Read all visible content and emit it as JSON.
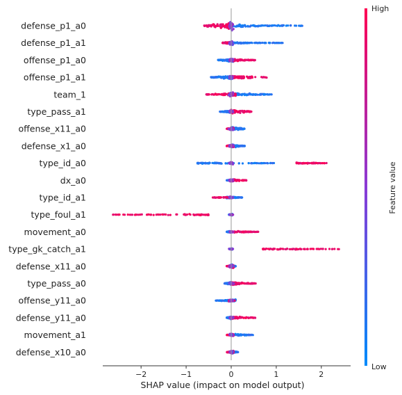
{
  "chart_data": {
    "type": "scatter",
    "subtype": "shap-beeswarm-summary",
    "xlabel": "SHAP value (impact on model output)",
    "xlim": [
      -2.85,
      2.65
    ],
    "xticks": [
      -2,
      -1,
      0,
      1,
      2
    ],
    "xtick_labels": [
      "−2",
      "−1",
      "0",
      "1",
      "2"
    ],
    "grid": false,
    "colorbar": {
      "label": "Feature value",
      "high": "High",
      "low": "Low",
      "high_color": "#ff0052",
      "low_color": "#008bfb"
    },
    "features": [
      {
        "name": "defense_p1_a0",
        "min": -0.6,
        "max": 1.6,
        "low_range": [
          0.0,
          1.6
        ],
        "high_range": [
          -0.6,
          -0.05
        ],
        "low_spread": 0.34,
        "high_spread": 0.85,
        "mid_spread": 0.95
      },
      {
        "name": "defense_p1_a1",
        "min": -0.2,
        "max": 1.15,
        "low_range": [
          0.0,
          1.15
        ],
        "high_range": [
          -0.2,
          0.0
        ],
        "low_spread": 0.15,
        "high_spread": 0.3,
        "mid_spread": 0.5
      },
      {
        "name": "offense_p1_a0",
        "min": -0.3,
        "max": 0.55,
        "low_range": [
          -0.3,
          0.05
        ],
        "high_range": [
          0.0,
          0.55
        ],
        "low_spread": 0.4,
        "high_spread": 0.3,
        "mid_spread": 0.3
      },
      {
        "name": "offense_p1_a1",
        "min": -0.45,
        "max": 0.8,
        "low_range": [
          -0.45,
          0.0
        ],
        "high_range": [
          0.0,
          0.8
        ],
        "low_spread": 0.4,
        "high_spread": 0.35,
        "mid_spread": 0.3
      },
      {
        "name": "team_1",
        "min": -0.55,
        "max": 0.9,
        "low_range": [
          0.0,
          0.9
        ],
        "high_range": [
          -0.55,
          0.1
        ],
        "low_spread": 0.35,
        "high_spread": 0.4,
        "mid_spread": 0.4
      },
      {
        "name": "type_pass_a1",
        "min": -0.25,
        "max": 0.45,
        "low_range": [
          -0.25,
          0.0
        ],
        "high_range": [
          0.0,
          0.45
        ],
        "low_spread": 0.25,
        "high_spread": 0.45,
        "mid_spread": 0.25
      },
      {
        "name": "offense_x11_a0",
        "min": -0.1,
        "max": 0.3,
        "low_range": [
          0.0,
          0.3
        ],
        "high_range": [
          -0.1,
          0.05
        ],
        "low_spread": 0.45,
        "high_spread": 0.3,
        "mid_spread": 0.3
      },
      {
        "name": "defense_x1_a0",
        "min": -0.1,
        "max": 0.3,
        "low_range": [
          0.0,
          0.3
        ],
        "high_range": [
          -0.1,
          0.05
        ],
        "low_spread": 0.35,
        "high_spread": 0.3,
        "mid_spread": 0.3
      },
      {
        "name": "type_id_a0",
        "min": -0.75,
        "max": 2.15,
        "low_range": [
          -0.75,
          0.95
        ],
        "high_range": [
          1.45,
          2.15
        ],
        "low_spread": 0.2,
        "high_spread": 0.15,
        "mid_spread": 0.25
      },
      {
        "name": "dx_a0",
        "min": -0.1,
        "max": 0.35,
        "low_range": [
          -0.1,
          0.05
        ],
        "high_range": [
          0.0,
          0.35
        ],
        "low_spread": 0.3,
        "high_spread": 0.25,
        "mid_spread": 0.2
      },
      {
        "name": "type_id_a1",
        "min": -0.45,
        "max": 0.25,
        "low_range": [
          -0.1,
          0.25
        ],
        "high_range": [
          -0.45,
          0.0
        ],
        "low_spread": 0.25,
        "high_spread": 0.15,
        "mid_spread": 0.2
      },
      {
        "name": "type_foul_a1",
        "min": -2.65,
        "max": 0.02,
        "low_range": [
          -0.05,
          0.02
        ],
        "high_range": [
          -2.65,
          -0.5
        ],
        "low_spread": 0.2,
        "high_spread": 0.15,
        "mid_spread": 0.1
      },
      {
        "name": "movement_a0",
        "min": -0.1,
        "max": 0.6,
        "low_range": [
          -0.1,
          0.0
        ],
        "high_range": [
          0.0,
          0.6
        ],
        "low_spread": 0.2,
        "high_spread": 0.2,
        "mid_spread": 0.1
      },
      {
        "name": "type_gk_catch_a1",
        "min": -0.02,
        "max": 2.4,
        "low_range": [
          -0.02,
          0.02
        ],
        "high_range": [
          0.7,
          2.4
        ],
        "low_spread": 0.15,
        "high_spread": 0.18,
        "mid_spread": 0.1
      },
      {
        "name": "defense_x11_a0",
        "min": -0.1,
        "max": 0.1,
        "low_range": [
          0.0,
          0.1
        ],
        "high_range": [
          -0.1,
          0.05
        ],
        "low_spread": 0.45,
        "high_spread": 0.4,
        "mid_spread": 0.3
      },
      {
        "name": "type_pass_a0",
        "min": -0.15,
        "max": 0.55,
        "low_range": [
          -0.15,
          0.0
        ],
        "high_range": [
          0.0,
          0.55
        ],
        "low_spread": 0.3,
        "high_spread": 0.35,
        "mid_spread": 0.2
      },
      {
        "name": "offense_y11_a0",
        "min": -0.35,
        "max": 0.1,
        "low_range": [
          -0.35,
          0.1
        ],
        "high_range": [
          -0.05,
          0.08
        ],
        "low_spread": 0.25,
        "high_spread": 0.2,
        "mid_spread": 0.2
      },
      {
        "name": "defense_y11_a0",
        "min": -0.1,
        "max": 0.55,
        "low_range": [
          -0.1,
          0.0
        ],
        "high_range": [
          0.0,
          0.55
        ],
        "low_spread": 0.35,
        "high_spread": 0.3,
        "mid_spread": 0.3
      },
      {
        "name": "movement_a1",
        "min": -0.1,
        "max": 0.5,
        "low_range": [
          0.0,
          0.5
        ],
        "high_range": [
          -0.1,
          0.05
        ],
        "low_spread": 0.3,
        "high_spread": 0.3,
        "mid_spread": 0.3
      },
      {
        "name": "defense_x10_a0",
        "min": -0.1,
        "max": 0.15,
        "low_range": [
          0.0,
          0.15
        ],
        "high_range": [
          -0.1,
          0.05
        ],
        "low_spread": 0.35,
        "high_spread": 0.3,
        "mid_spread": 0.3
      }
    ]
  }
}
